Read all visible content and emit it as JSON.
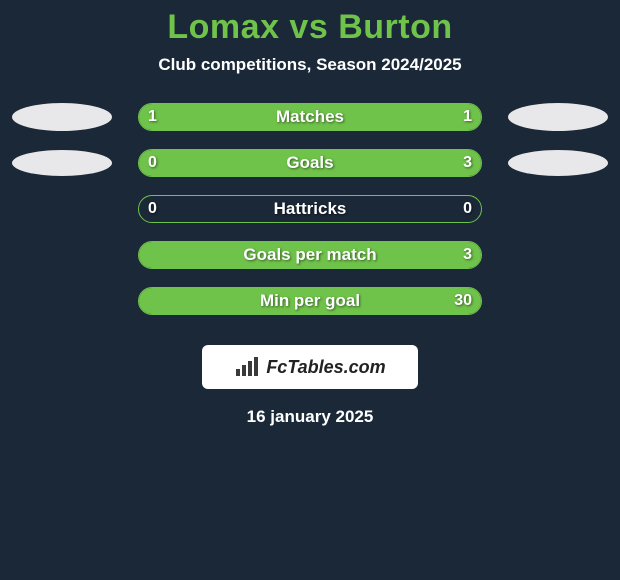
{
  "background_color": "#1a2838",
  "title": {
    "text": "Lomax vs Burton",
    "color": "#6fc24a",
    "fontsize": 34
  },
  "subtitle": {
    "text": "Club competitions, Season 2024/2025",
    "color": "#ffffff",
    "fontsize": 17
  },
  "label_color": "#ffffff",
  "value_color": "#ffffff",
  "track_bg": "#1a2838",
  "track_border": "#6fc24a",
  "fill_left_color": "#6fc24a",
  "fill_right_color": "#6fc24a",
  "avatar_color": "#e8e8ea",
  "rows": [
    {
      "label": "Matches",
      "left_val": "1",
      "right_val": "1",
      "left_pct": 50,
      "right_pct": 50,
      "show_left_avatar": true,
      "show_right_avatar": true,
      "avatar_h": 28
    },
    {
      "label": "Goals",
      "left_val": "0",
      "right_val": "3",
      "left_pct": 18,
      "right_pct": 82,
      "show_left_avatar": true,
      "show_right_avatar": true,
      "avatar_h": 26
    },
    {
      "label": "Hattricks",
      "left_val": "0",
      "right_val": "0",
      "left_pct": 0,
      "right_pct": 0,
      "show_left_avatar": false,
      "show_right_avatar": false,
      "avatar_h": 0
    },
    {
      "label": "Goals per match",
      "left_val": "",
      "right_val": "3",
      "left_pct": 0,
      "right_pct": 100,
      "show_left_avatar": false,
      "show_right_avatar": false,
      "avatar_h": 0
    },
    {
      "label": "Min per goal",
      "left_val": "",
      "right_val": "30",
      "left_pct": 0,
      "right_pct": 100,
      "show_left_avatar": false,
      "show_right_avatar": false,
      "avatar_h": 0
    }
  ],
  "badge": {
    "bg": "#ffffff",
    "text": "FcTables.com",
    "text_color": "#222222",
    "icon_color": "#3a3a3a",
    "fontsize": 18
  },
  "date": {
    "text": "16 january 2025",
    "color": "#ffffff",
    "fontsize": 17
  }
}
